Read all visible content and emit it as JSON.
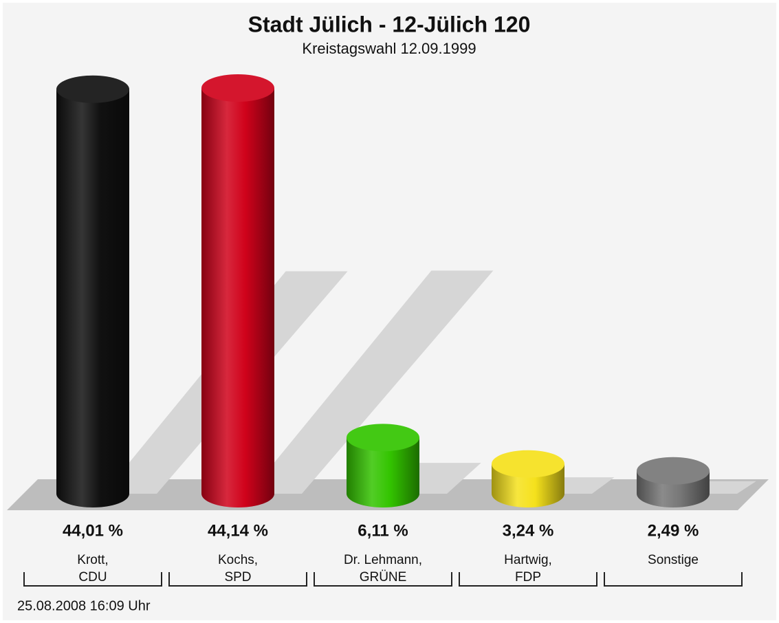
{
  "chart_data": {
    "type": "bar",
    "title": "Stadt Jülich - 12-Jülich 120",
    "subtitle": "Kreistagswahl 12.09.1999",
    "categories": [
      [
        "Krott,",
        "CDU"
      ],
      [
        "Kochs,",
        "SPD"
      ],
      [
        "Dr. Lehmann,",
        "GRÜNE"
      ],
      [
        "Hartwig,",
        "FDP"
      ],
      [
        "Sonstige"
      ]
    ],
    "values": [
      44.01,
      44.14,
      6.11,
      3.24,
      2.49
    ],
    "value_labels": [
      "44,01 %",
      "44,14 %",
      "6,11 %",
      "3,24 %",
      "2,49 %"
    ],
    "colors": [
      "#111111",
      "#d0021b",
      "#33c400",
      "#f5e11c",
      "#777777"
    ],
    "footer": "25.08.2008 16:09 Uhr"
  }
}
